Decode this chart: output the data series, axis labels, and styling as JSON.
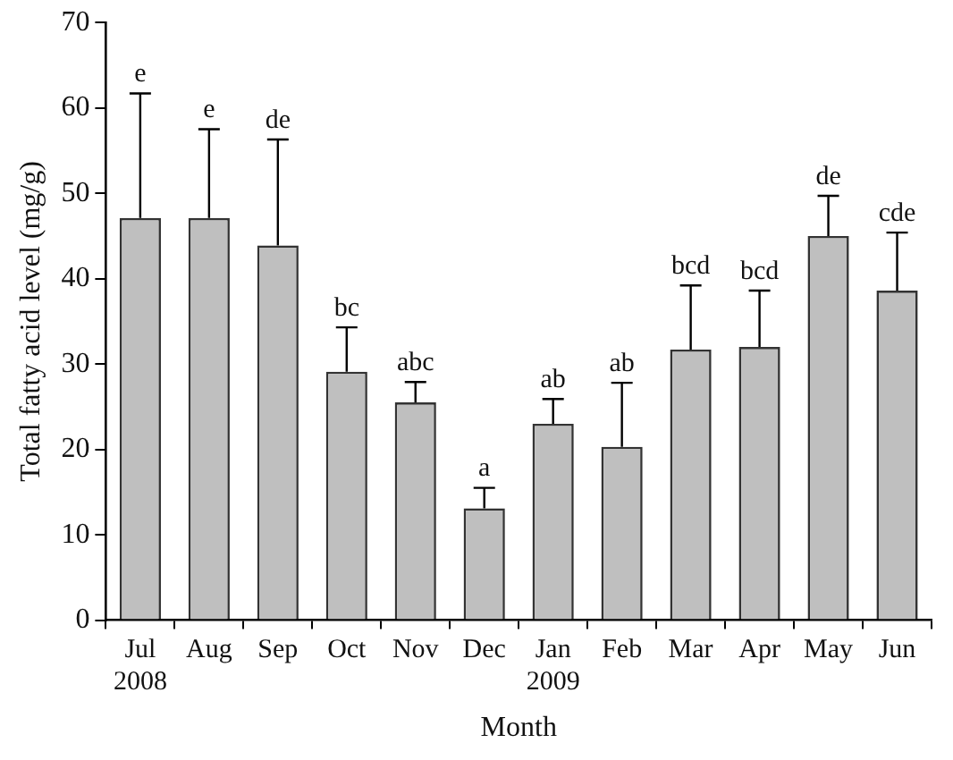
{
  "chart_data": {
    "type": "bar",
    "xlabel": "Month",
    "ylabel": "Total fatty acid level (mg/g)",
    "categories": [
      "Jul\n2008",
      "Aug",
      "Sep",
      "Oct",
      "Nov",
      "Dec",
      "Jan\n2009",
      "Feb",
      "Mar",
      "Apr",
      "May",
      "Jun"
    ],
    "values": [
      47.1,
      47.1,
      43.9,
      29.1,
      25.5,
      13.1,
      23.0,
      20.3,
      31.7,
      32.0,
      45.0,
      38.6
    ],
    "errors": [
      [
        47.1,
        61.7
      ],
      [
        47.1,
        57.5
      ],
      [
        43.9,
        56.3
      ],
      [
        29.1,
        34.3
      ],
      [
        25.5,
        27.9
      ],
      [
        13.1,
        15.5
      ],
      [
        23.0,
        25.9
      ],
      [
        20.3,
        27.8
      ],
      [
        31.7,
        39.2
      ],
      [
        32.0,
        38.6
      ],
      [
        45.0,
        49.7
      ],
      [
        38.6,
        45.4
      ]
    ],
    "color": "#bfbfbf",
    "ylim": [
      0,
      70
    ],
    "yticks": [
      0,
      10,
      20,
      30,
      40,
      50,
      60,
      70
    ],
    "grid": false,
    "legend": false,
    "annotations": [
      {
        "text": "e",
        "x": "Jul\n2008",
        "y": 61.7
      },
      {
        "text": "e",
        "x": "Aug",
        "y": 57.5
      },
      {
        "text": "de",
        "x": "Sep",
        "y": 56.3
      },
      {
        "text": "bc",
        "x": "Oct",
        "y": 34.3
      },
      {
        "text": "abc",
        "x": "Nov",
        "y": 27.9
      },
      {
        "text": "a",
        "x": "Dec",
        "y": 15.5
      },
      {
        "text": "ab",
        "x": "Jan\n2009",
        "y": 25.9
      },
      {
        "text": "ab",
        "x": "Feb",
        "y": 27.8
      },
      {
        "text": "bcd",
        "x": "Mar",
        "y": 39.2
      },
      {
        "text": "bcd",
        "x": "Apr",
        "y": 38.6
      },
      {
        "text": "de",
        "x": "May",
        "y": 49.7
      },
      {
        "text": "cde",
        "x": "Jun",
        "y": 45.4
      }
    ]
  }
}
